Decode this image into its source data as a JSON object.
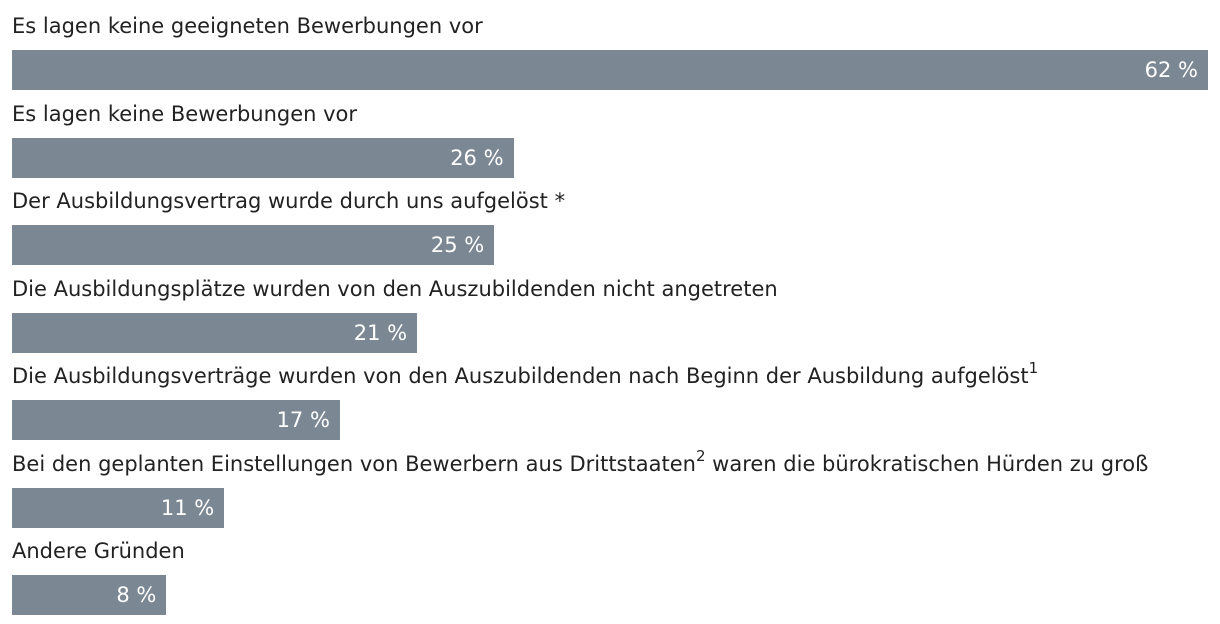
{
  "chart_data": {
    "type": "bar",
    "orientation": "horizontal",
    "xlim": [
      0,
      62
    ],
    "bar_color": "#7b8893",
    "value_suffix": " %",
    "categories": [
      "Es lagen keine geeigneten Bewerbungen vor",
      "Es lagen keine Bewerbungen vor",
      "Der Ausbildungsvertrag wurde durch uns aufgelöst *",
      "Die Ausbildungsplätze wurden von den Auszubildenden nicht angetreten",
      "Die Ausbildungsverträge wurden von den Auszubildenden nach Beginn der Ausbildung aufgelöst",
      "Bei den geplanten Einstellungen von Bewerbern aus Drittstaaten",
      "Andere Gründen"
    ],
    "label_superscripts": [
      "",
      "",
      "",
      "",
      "1",
      "2",
      ""
    ],
    "label_suffixes": [
      "",
      "",
      "",
      "",
      "",
      " waren die bürokratischen Hürden zu groß",
      ""
    ],
    "values": [
      62,
      26,
      25,
      21,
      17,
      11,
      8
    ],
    "value_labels": [
      "62 %",
      "26 %",
      "25 %",
      "21 %",
      "17 %",
      "11 %",
      "8 %"
    ]
  }
}
